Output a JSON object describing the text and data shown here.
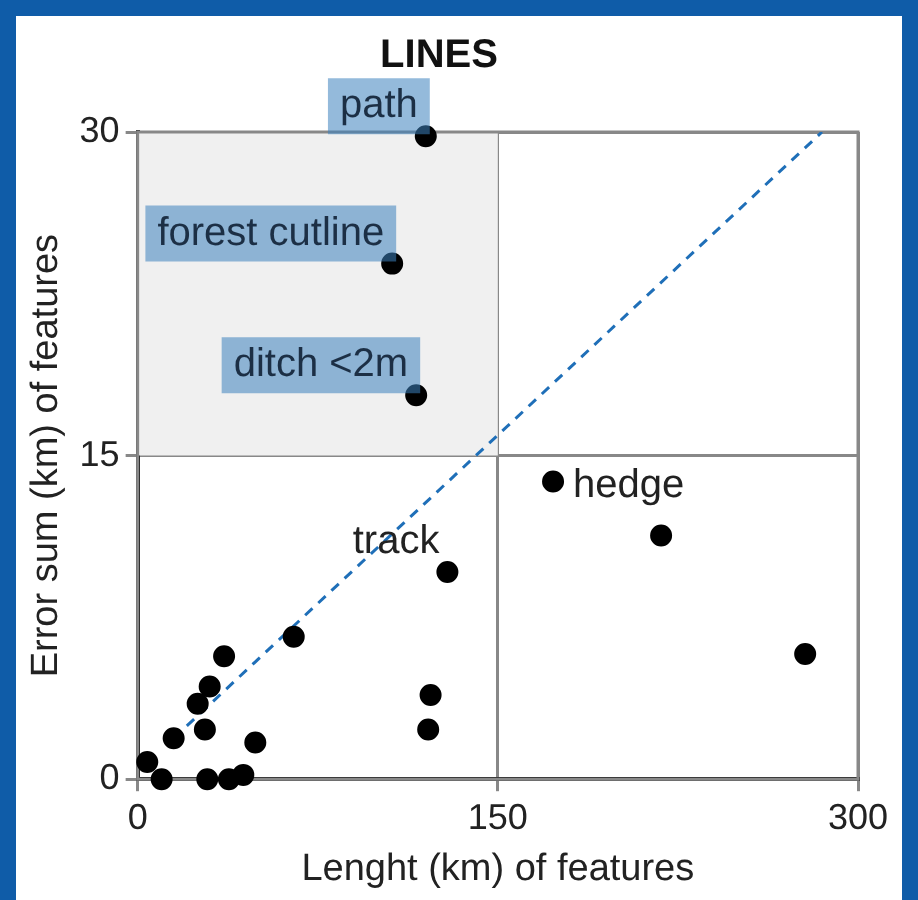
{
  "chart_data": {
    "type": "scatter",
    "title": "LINES",
    "xlabel": "Lenght (km) of features",
    "ylabel": "Error sum (km) of features",
    "xlim": [
      0,
      300
    ],
    "xticks": [
      0,
      150,
      300
    ],
    "ylim": [
      0,
      30
    ],
    "yticks": [
      0,
      15,
      30
    ],
    "grid": true,
    "legend": false,
    "marker": "circle",
    "series": [
      {
        "color": "#000000",
        "x": [
          120,
          106,
          116,
          173,
          218,
          129,
          122,
          121,
          278,
          65,
          36,
          30,
          25,
          15,
          28,
          49,
          4,
          29,
          38,
          44,
          10
        ],
        "values": [
          29.8,
          23.9,
          17.8,
          13.8,
          11.3,
          9.6,
          3.9,
          2.3,
          5.8,
          6.6,
          5.7,
          4.3,
          3.5,
          1.9,
          2.3,
          1.7,
          0.8,
          0,
          0,
          0.2,
          0
        ]
      },
      {
        "type": "line",
        "color": "#1f6fb8",
        "line_style": "dashed",
        "marker": "none",
        "x": [
          15,
          285
        ],
        "values": [
          1.9,
          30
        ]
      }
    ],
    "bands": [
      {
        "axis": "y",
        "from": 15,
        "to": 30,
        "color": "#f0f0f0"
      }
    ],
    "annotations": [
      {
        "text": "path",
        "x": 120,
        "y": 29.8
      },
      {
        "text": "forest cutline",
        "x": 106,
        "y": 23.9
      },
      {
        "text": "ditch <2m",
        "x": 116,
        "y": 17.8
      },
      {
        "text": "hedge",
        "x": 173,
        "y": 13.8
      },
      {
        "text": "track",
        "x": 129,
        "y": 9.6
      }
    ]
  }
}
